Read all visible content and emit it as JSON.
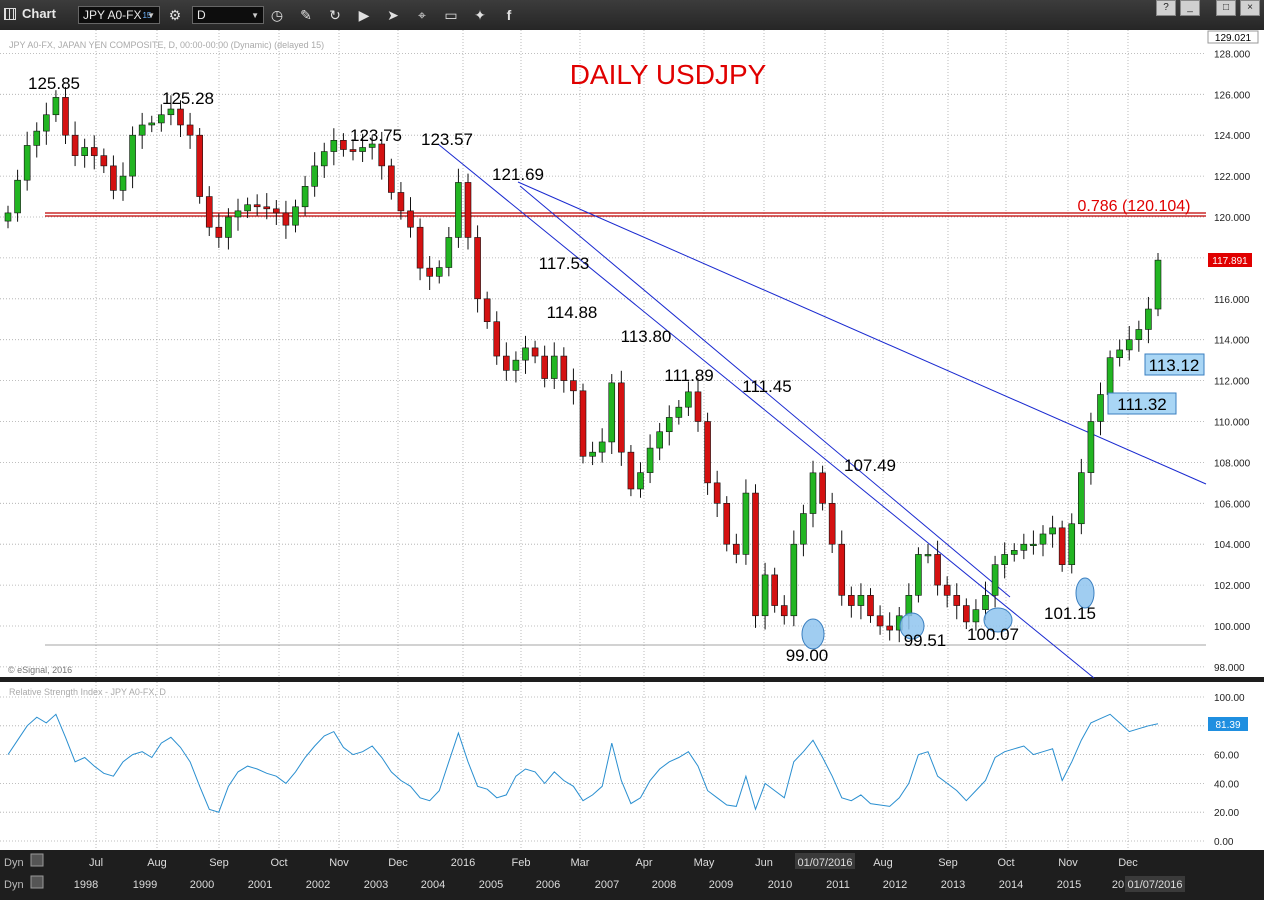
{
  "toolbar": {
    "title": "Chart",
    "symbol": "JPY A0-FX",
    "symbol_sup": "15",
    "interval": "D",
    "tools": [
      "clock-icon",
      "pencil-icon",
      "redo-icon",
      "play-icon",
      "cursor-icon",
      "tag-icon",
      "comment-icon",
      "twitter-icon",
      "facebook-icon"
    ],
    "window_buttons": [
      "?",
      "_",
      "□",
      "×"
    ]
  },
  "price_panel": {
    "header": "JPY A0-FX, JAPAN YEN COMPOSITE, D, 00:00-00:00 (Dynamic) (delayed 15)",
    "copyright": "© eSignal, 2016",
    "title": "DAILY USDJPY",
    "last_price": "117.891",
    "top_label": "129.021",
    "fib_label": "0.786 (120.104)"
  },
  "rsi_panel": {
    "header": "Relative Strength Index - JPY A0-FX, D",
    "last_value": "81.39"
  },
  "footer": {
    "dyn": "Dyn",
    "cursor_month_date": "01/07/2016",
    "cursor_year_date": "01/07/2016"
  },
  "chart_data": [
    {
      "type": "candlestick",
      "title": "DAILY USDJPY",
      "ylim": [
        97,
        129.021
      ],
      "y_ticks": [
        98,
        100,
        102,
        104,
        106,
        108,
        110,
        112,
        114,
        116,
        118,
        120,
        122,
        124,
        126,
        128
      ],
      "x_month_labels": [
        "Jul",
        "Aug",
        "Sep",
        "Oct",
        "Nov",
        "Dec",
        "2016",
        "Feb",
        "Mar",
        "Apr",
        "May",
        "Jun",
        "01/07/2016",
        "Aug",
        "Sep",
        "Oct",
        "Nov",
        "Dec"
      ],
      "x_year_labels": [
        "1998",
        "1999",
        "2000",
        "2001",
        "2002",
        "2003",
        "2004",
        "2005",
        "2006",
        "2007",
        "2008",
        "2009",
        "2010",
        "2011",
        "2012",
        "2013",
        "2014",
        "2015",
        "20",
        "01/07/2016"
      ],
      "grid": true,
      "series": [
        {
          "name": "Close",
          "values": [
            120.2,
            121.8,
            123.5,
            124.2,
            125.0,
            125.85,
            124.0,
            123.0,
            123.4,
            123.0,
            122.5,
            121.3,
            122.0,
            124.0,
            124.5,
            124.6,
            125.0,
            125.28,
            124.5,
            124.0,
            121.0,
            119.5,
            119.0,
            120.0,
            120.3,
            120.6,
            120.5,
            120.4,
            120.2,
            119.6,
            120.5,
            121.5,
            122.5,
            123.2,
            123.75,
            123.3,
            123.2,
            123.4,
            123.57,
            122.5,
            121.2,
            120.3,
            119.5,
            117.5,
            117.1,
            117.53,
            119.0,
            121.69,
            119.0,
            116.0,
            114.88,
            113.2,
            112.5,
            113.0,
            113.6,
            113.2,
            112.1,
            113.2,
            112.0,
            111.5,
            108.3,
            108.5,
            109.0,
            111.89,
            108.5,
            106.7,
            107.5,
            108.7,
            109.5,
            110.2,
            110.7,
            111.45,
            110.0,
            107.0,
            106.0,
            104.0,
            103.5,
            106.5,
            100.5,
            102.5,
            101.0,
            100.5,
            104.0,
            105.5,
            107.49,
            106.0,
            104.0,
            101.5,
            101.0,
            101.5,
            100.5,
            100.0,
            99.8,
            100.5,
            101.5,
            103.5,
            103.5,
            102.0,
            101.5,
            101.0,
            100.2,
            100.8,
            101.5,
            103.0,
            103.5,
            103.7,
            104.0,
            104.0,
            104.5,
            104.8,
            103.0,
            105.0,
            107.5,
            110.0,
            111.32,
            113.12,
            113.5,
            114.0,
            114.5,
            115.5,
            117.891
          ]
        }
      ],
      "annotations": {
        "highs": [
          "125.85",
          "125.28",
          "123.75",
          "123.57",
          "121.69",
          "117.53",
          "114.88",
          "113.80",
          "111.89",
          "111.45",
          "107.49"
        ],
        "lows": [
          "99.00",
          "99.51",
          "100.07",
          "101.15"
        ],
        "support_boxes": [
          "113.12",
          "111.32"
        ],
        "fib_level": 120.104,
        "reference_low": 99.0,
        "trendlines": "three descending blue trendlines from the 121.69 / 123.57 highs"
      }
    },
    {
      "type": "line",
      "title": "Relative Strength Index - JPY A0-FX, D",
      "ylim": [
        -5,
        105
      ],
      "y_ticks": [
        0,
        20,
        40,
        60,
        80,
        100
      ],
      "last_value": 81.39,
      "series": [
        {
          "values": [
            60,
            70,
            80,
            86,
            82,
            88,
            72,
            55,
            58,
            52,
            47,
            45,
            55,
            60,
            62,
            58,
            68,
            72,
            65,
            55,
            38,
            22,
            20,
            38,
            48,
            52,
            50,
            47,
            45,
            40,
            48,
            58,
            66,
            73,
            76,
            65,
            60,
            62,
            66,
            58,
            48,
            42,
            38,
            30,
            28,
            35,
            55,
            75,
            55,
            38,
            36,
            30,
            32,
            45,
            50,
            48,
            40,
            48,
            42,
            38,
            28,
            32,
            38,
            68,
            42,
            26,
            30,
            42,
            50,
            55,
            58,
            62,
            52,
            35,
            30,
            25,
            24,
            45,
            22,
            40,
            35,
            30,
            55,
            62,
            70,
            58,
            45,
            30,
            28,
            32,
            26,
            25,
            24,
            30,
            40,
            60,
            62,
            45,
            40,
            35,
            28,
            35,
            42,
            58,
            62,
            64,
            66,
            60,
            62,
            64,
            42,
            55,
            70,
            82,
            85,
            88,
            82,
            76,
            78,
            80,
            81.39
          ]
        }
      ]
    }
  ]
}
